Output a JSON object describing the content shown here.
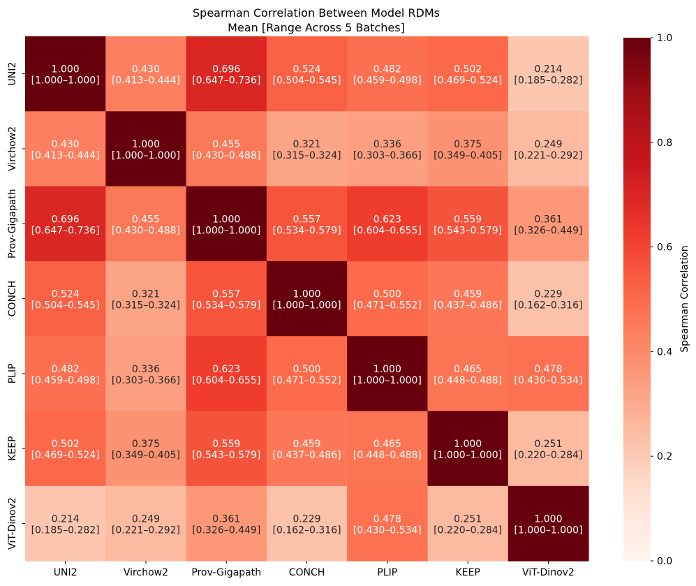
{
  "chart_data": {
    "type": "heatmap",
    "title": "Spearman Correlation Between Model RDMs",
    "subtitle": "Mean [Range Across 5 Batches]",
    "rows": [
      "UNI2",
      "Virchow2",
      "Prov-Gigapath",
      "CONCH",
      "PLIP",
      "KEEP",
      "ViT-Dinov2"
    ],
    "columns": [
      "UNI2",
      "Virchow2",
      "Prov-Gigapath",
      "CONCH",
      "PLIP",
      "KEEP",
      "ViT-Dinov2"
    ],
    "means": [
      [
        "1.000",
        "0.430",
        "0.696",
        "0.524",
        "0.482",
        "0.502",
        "0.214"
      ],
      [
        "0.430",
        "1.000",
        "0.455",
        "0.321",
        "0.336",
        "0.375",
        "0.249"
      ],
      [
        "0.696",
        "0.455",
        "1.000",
        "0.557",
        "0.623",
        "0.559",
        "0.361"
      ],
      [
        "0.524",
        "0.321",
        "0.557",
        "1.000",
        "0.500",
        "0.459",
        "0.229"
      ],
      [
        "0.482",
        "0.336",
        "0.623",
        "0.500",
        "1.000",
        "0.465",
        "0.478"
      ],
      [
        "0.502",
        "0.375",
        "0.559",
        "0.459",
        "0.465",
        "1.000",
        "0.251"
      ],
      [
        "0.214",
        "0.249",
        "0.361",
        "0.229",
        "0.478",
        "0.251",
        "1.000"
      ]
    ],
    "ranges": [
      [
        "[1.000–1.000]",
        "[0.413–0.444]",
        "[0.647–0.736]",
        "[0.504–0.545]",
        "[0.459–0.498]",
        "[0.469–0.524]",
        "[0.185–0.282]"
      ],
      [
        "[0.413–0.444]",
        "[1.000–1.000]",
        "[0.430–0.488]",
        "[0.315–0.324]",
        "[0.303–0.366]",
        "[0.349–0.405]",
        "[0.221–0.292]"
      ],
      [
        "[0.647–0.736]",
        "[0.430–0.488]",
        "[1.000–1.000]",
        "[0.534–0.579]",
        "[0.604–0.655]",
        "[0.543–0.579]",
        "[0.326–0.449]"
      ],
      [
        "[0.504–0.545]",
        "[0.315–0.324]",
        "[0.534–0.579]",
        "[1.000–1.000]",
        "[0.471–0.552]",
        "[0.437–0.486]",
        "[0.162–0.316]"
      ],
      [
        "[0.459–0.498]",
        "[0.303–0.366]",
        "[0.604–0.655]",
        "[0.471–0.552]",
        "[1.000–1.000]",
        "[0.448–0.488]",
        "[0.430–0.534]"
      ],
      [
        "[0.469–0.524]",
        "[0.349–0.405]",
        "[0.543–0.579]",
        "[0.437–0.486]",
        "[0.448–0.488]",
        "[1.000–1.000]",
        "[0.220–0.284]"
      ],
      [
        "[0.185–0.282]",
        "[0.221–0.292]",
        "[0.326–0.449]",
        "[0.162–0.316]",
        "[0.430–0.534]",
        "[0.220–0.284]",
        "[1.000–1.000]"
      ]
    ],
    "colorbar": {
      "label": "Spearman Correlation",
      "vmin": 0.0,
      "vmax": 1.0,
      "ticks": [
        "0.0",
        "0.2",
        "0.4",
        "0.6",
        "0.8",
        "1.0"
      ],
      "colormap": "Reds"
    },
    "text_colors": {
      "light": "#ffffff",
      "dark": "#262626"
    }
  }
}
